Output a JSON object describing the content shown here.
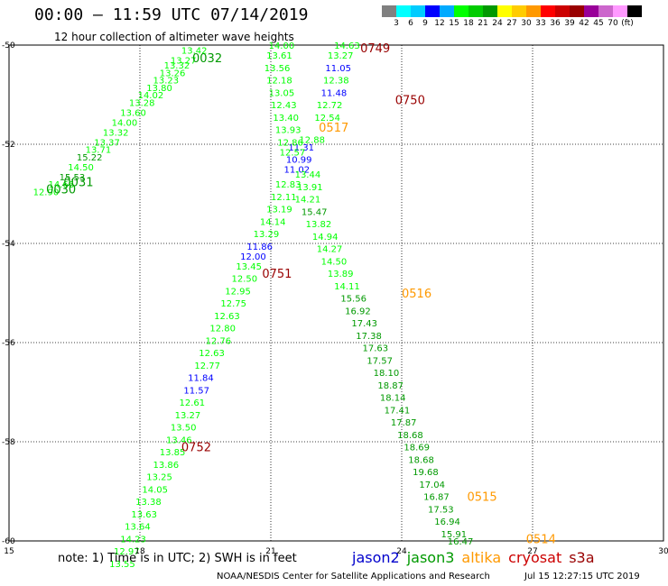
{
  "header": {
    "title": "00:00 – 11:59 UTC 07/14/2019",
    "subtitle": "12 hour collection of altimeter wave heights"
  },
  "legend": {
    "colors": [
      "#808080",
      "#00ffff",
      "#00ccff",
      "#0000ff",
      "#00aaff",
      "#00ff00",
      "#00cc00",
      "#009900",
      "#ffff00",
      "#ffcc00",
      "#ff9900",
      "#ff0000",
      "#cc0000",
      "#990000",
      "#990099",
      "#cc66cc",
      "#ff99ff",
      "#000000"
    ],
    "ticks": [
      "3",
      "6",
      "9",
      "12",
      "15",
      "18",
      "21",
      "24",
      "27",
      "30",
      "33",
      "36",
      "39",
      "42",
      "45",
      "70",
      "(ft)"
    ]
  },
  "chart_data": {
    "type": "scatter",
    "x_ticks": [
      "15",
      "18",
      "21",
      "24",
      "27",
      "30"
    ],
    "y_ticks": [
      "-50",
      "-52",
      "-54",
      "-56",
      "-58",
      "-60"
    ],
    "xlim": [
      15,
      30
    ],
    "ylim": [
      -60,
      -50
    ],
    "grid": true,
    "time_labels": [
      {
        "text": "0749",
        "lon": 23.05,
        "lat": -50.05,
        "color": "#990000"
      },
      {
        "text": "0750",
        "lon": 23.85,
        "lat": -51.1,
        "color": "#990000"
      },
      {
        "text": "0517",
        "lon": 22.1,
        "lat": -51.65,
        "color": "#ff9900"
      },
      {
        "text": "0032",
        "lon": 19.2,
        "lat": -50.25,
        "color": "#009900"
      },
      {
        "text": "0031",
        "lon": 16.25,
        "lat": -52.75,
        "color": "#009900"
      },
      {
        "text": "0030",
        "lon": 15.85,
        "lat": -52.9,
        "color": "#009900"
      },
      {
        "text": "0751",
        "lon": 20.8,
        "lat": -54.6,
        "color": "#990000"
      },
      {
        "text": "0516",
        "lon": 24.0,
        "lat": -55.0,
        "color": "#ff9900"
      },
      {
        "text": "0752",
        "lon": 18.95,
        "lat": -58.1,
        "color": "#990000"
      },
      {
        "text": "0515",
        "lon": 25.5,
        "lat": -59.1,
        "color": "#ff9900"
      },
      {
        "text": "0514",
        "lon": 26.85,
        "lat": -59.95,
        "color": "#ff9900"
      }
    ],
    "points": [
      {
        "v": "14.63",
        "lon": 22.45,
        "lat": -50.0,
        "c": "#00ff00"
      },
      {
        "v": "13.27",
        "lon": 22.3,
        "lat": -50.2,
        "c": "#00ff00"
      },
      {
        "v": "11.05",
        "lon": 22.25,
        "lat": -50.45,
        "c": "#0000ff"
      },
      {
        "v": "12.38",
        "lon": 22.2,
        "lat": -50.7,
        "c": "#00ff00"
      },
      {
        "v": "11.48",
        "lon": 22.15,
        "lat": -50.95,
        "c": "#0000ff"
      },
      {
        "v": "12.72",
        "lon": 22.05,
        "lat": -51.2,
        "c": "#00ff00"
      },
      {
        "v": "12.54",
        "lon": 22.0,
        "lat": -51.45,
        "c": "#00ff00"
      },
      {
        "v": "12.88",
        "lon": 21.65,
        "lat": -51.9,
        "c": "#00ff00"
      },
      {
        "v": "11.31",
        "lon": 21.4,
        "lat": -52.05,
        "c": "#0000ff"
      },
      {
        "v": "10.99",
        "lon": 21.35,
        "lat": -52.3,
        "c": "#0000ff"
      },
      {
        "v": "11.02",
        "lon": 21.3,
        "lat": -52.5,
        "c": "#0000ff"
      },
      {
        "v": "13.44",
        "lon": 21.55,
        "lat": -52.6,
        "c": "#00ff00"
      },
      {
        "v": "13.91",
        "lon": 21.6,
        "lat": -52.85,
        "c": "#00ff00"
      },
      {
        "v": "14.21",
        "lon": 21.55,
        "lat": -53.1,
        "c": "#00ff00"
      },
      {
        "v": "15.47",
        "lon": 21.7,
        "lat": -53.35,
        "c": "#009900"
      },
      {
        "v": "13.82",
        "lon": 21.8,
        "lat": -53.6,
        "c": "#00ff00"
      },
      {
        "v": "14.94",
        "lon": 21.95,
        "lat": -53.85,
        "c": "#00ff00"
      },
      {
        "v": "14.27",
        "lon": 22.05,
        "lat": -54.1,
        "c": "#00ff00"
      },
      {
        "v": "14.50",
        "lon": 22.15,
        "lat": -54.35,
        "c": "#00ff00"
      },
      {
        "v": "13.89",
        "lon": 22.3,
        "lat": -54.6,
        "c": "#00ff00"
      },
      {
        "v": "14.11",
        "lon": 22.45,
        "lat": -54.85,
        "c": "#00ff00"
      },
      {
        "v": "15.56",
        "lon": 22.6,
        "lat": -55.1,
        "c": "#009900"
      },
      {
        "v": "16.92",
        "lon": 22.7,
        "lat": -55.35,
        "c": "#009900"
      },
      {
        "v": "17.43",
        "lon": 22.85,
        "lat": -55.6,
        "c": "#009900"
      },
      {
        "v": "17.38",
        "lon": 22.95,
        "lat": -55.85,
        "c": "#009900"
      },
      {
        "v": "17.63",
        "lon": 23.1,
        "lat": -56.1,
        "c": "#009900"
      },
      {
        "v": "17.57",
        "lon": 23.2,
        "lat": -56.35,
        "c": "#009900"
      },
      {
        "v": "18.10",
        "lon": 23.35,
        "lat": -56.6,
        "c": "#009900"
      },
      {
        "v": "18.87",
        "lon": 23.45,
        "lat": -56.85,
        "c": "#009900"
      },
      {
        "v": "18.14",
        "lon": 23.5,
        "lat": -57.1,
        "c": "#009900"
      },
      {
        "v": "17.41",
        "lon": 23.6,
        "lat": -57.35,
        "c": "#009900"
      },
      {
        "v": "17.87",
        "lon": 23.75,
        "lat": -57.6,
        "c": "#009900"
      },
      {
        "v": "18.68",
        "lon": 23.9,
        "lat": -57.85,
        "c": "#009900"
      },
      {
        "v": "18.69",
        "lon": 24.05,
        "lat": -58.1,
        "c": "#009900"
      },
      {
        "v": "18.68",
        "lon": 24.15,
        "lat": -58.35,
        "c": "#009900"
      },
      {
        "v": "19.68",
        "lon": 24.25,
        "lat": -58.6,
        "c": "#009900"
      },
      {
        "v": "17.04",
        "lon": 24.4,
        "lat": -58.85,
        "c": "#009900"
      },
      {
        "v": "16.87",
        "lon": 24.5,
        "lat": -59.1,
        "c": "#009900"
      },
      {
        "v": "17.53",
        "lon": 24.6,
        "lat": -59.35,
        "c": "#009900"
      },
      {
        "v": "16.94",
        "lon": 24.75,
        "lat": -59.6,
        "c": "#009900"
      },
      {
        "v": "15.91",
        "lon": 24.9,
        "lat": -59.85,
        "c": "#009900"
      },
      {
        "v": "16.47",
        "lon": 25.05,
        "lat": -60.0,
        "c": "#009900"
      },
      {
        "v": "14.00",
        "lon": 20.95,
        "lat": -50.0,
        "c": "#00ff00"
      },
      {
        "v": "13.61",
        "lon": 20.9,
        "lat": -50.2,
        "c": "#00ff00"
      },
      {
        "v": "13.56",
        "lon": 20.85,
        "lat": -50.45,
        "c": "#00ff00"
      },
      {
        "v": "12.18",
        "lon": 20.9,
        "lat": -50.7,
        "c": "#00ff00"
      },
      {
        "v": "13.05",
        "lon": 20.95,
        "lat": -50.95,
        "c": "#00ff00"
      },
      {
        "v": "12.43",
        "lon": 21.0,
        "lat": -51.2,
        "c": "#00ff00"
      },
      {
        "v": "13.40",
        "lon": 21.05,
        "lat": -51.45,
        "c": "#00ff00"
      },
      {
        "v": "13.93",
        "lon": 21.1,
        "lat": -51.7,
        "c": "#00ff00"
      },
      {
        "v": "12.86",
        "lon": 21.15,
        "lat": -51.95,
        "c": "#00ff00"
      },
      {
        "v": "12.57",
        "lon": 21.2,
        "lat": -52.15,
        "c": "#00ff00"
      },
      {
        "v": "12.83",
        "lon": 21.1,
        "lat": -52.8,
        "c": "#00ff00"
      },
      {
        "v": "12.11",
        "lon": 21.0,
        "lat": -53.05,
        "c": "#00ff00"
      },
      {
        "v": "13.19",
        "lon": 20.9,
        "lat": -53.3,
        "c": "#00ff00"
      },
      {
        "v": "14.14",
        "lon": 20.75,
        "lat": -53.55,
        "c": "#00ff00"
      },
      {
        "v": "13.29",
        "lon": 20.6,
        "lat": -53.8,
        "c": "#00ff00"
      },
      {
        "v": "11.86",
        "lon": 20.45,
        "lat": -54.05,
        "c": "#0000ff"
      },
      {
        "v": "12.00",
        "lon": 20.3,
        "lat": -54.25,
        "c": "#0000ff"
      },
      {
        "v": "13.45",
        "lon": 20.2,
        "lat": -54.45,
        "c": "#00ff00"
      },
      {
        "v": "12.50",
        "lon": 20.1,
        "lat": -54.7,
        "c": "#00ff00"
      },
      {
        "v": "12.95",
        "lon": 19.95,
        "lat": -54.95,
        "c": "#00ff00"
      },
      {
        "v": "12.75",
        "lon": 19.85,
        "lat": -55.2,
        "c": "#00ff00"
      },
      {
        "v": "12.63",
        "lon": 19.7,
        "lat": -55.45,
        "c": "#00ff00"
      },
      {
        "v": "12.80",
        "lon": 19.6,
        "lat": -55.7,
        "c": "#00ff00"
      },
      {
        "v": "12.76",
        "lon": 19.5,
        "lat": -55.95,
        "c": "#00ff00"
      },
      {
        "v": "12.63",
        "lon": 19.35,
        "lat": -56.2,
        "c": "#00ff00"
      },
      {
        "v": "12.77",
        "lon": 19.25,
        "lat": -56.45,
        "c": "#00ff00"
      },
      {
        "v": "11.84",
        "lon": 19.1,
        "lat": -56.7,
        "c": "#0000ff"
      },
      {
        "v": "11.57",
        "lon": 19.0,
        "lat": -56.95,
        "c": "#0000ff"
      },
      {
        "v": "12.61",
        "lon": 18.9,
        "lat": -57.2,
        "c": "#00ff00"
      },
      {
        "v": "13.27",
        "lon": 18.8,
        "lat": -57.45,
        "c": "#00ff00"
      },
      {
        "v": "13.50",
        "lon": 18.7,
        "lat": -57.7,
        "c": "#00ff00"
      },
      {
        "v": "13.46",
        "lon": 18.6,
        "lat": -57.95,
        "c": "#00ff00"
      },
      {
        "v": "13.85",
        "lon": 18.45,
        "lat": -58.2,
        "c": "#00ff00"
      },
      {
        "v": "13.86",
        "lon": 18.3,
        "lat": -58.45,
        "c": "#00ff00"
      },
      {
        "v": "13.25",
        "lon": 18.15,
        "lat": -58.7,
        "c": "#00ff00"
      },
      {
        "v": "14.05",
        "lon": 18.05,
        "lat": -58.95,
        "c": "#00ff00"
      },
      {
        "v": "13.38",
        "lon": 17.9,
        "lat": -59.2,
        "c": "#00ff00"
      },
      {
        "v": "13.63",
        "lon": 17.8,
        "lat": -59.45,
        "c": "#00ff00"
      },
      {
        "v": "13.64",
        "lon": 17.65,
        "lat": -59.7,
        "c": "#00ff00"
      },
      {
        "v": "14.23",
        "lon": 17.55,
        "lat": -59.95,
        "c": "#00ff00"
      },
      {
        "v": "12.97",
        "lon": 17.4,
        "lat": -60.2,
        "c": "#00ff00"
      },
      {
        "v": "13.55",
        "lon": 17.3,
        "lat": -60.45,
        "c": "#00ff00"
      },
      {
        "v": "13.42",
        "lon": 18.95,
        "lat": -50.1,
        "c": "#00ff00"
      },
      {
        "v": "13.27",
        "lon": 18.7,
        "lat": -50.3,
        "c": "#00ff00"
      },
      {
        "v": "13.32",
        "lon": 18.55,
        "lat": -50.4,
        "c": "#00ff00"
      },
      {
        "v": "13.26",
        "lon": 18.45,
        "lat": -50.55,
        "c": "#00ff00"
      },
      {
        "v": "13.23",
        "lon": 18.3,
        "lat": -50.7,
        "c": "#00ff00"
      },
      {
        "v": "13.80",
        "lon": 18.15,
        "lat": -50.85,
        "c": "#00ff00"
      },
      {
        "v": "14.02",
        "lon": 17.95,
        "lat": -51.0,
        "c": "#00ff00"
      },
      {
        "v": "13.28",
        "lon": 17.75,
        "lat": -51.15,
        "c": "#00ff00"
      },
      {
        "v": "13.60",
        "lon": 17.55,
        "lat": -51.35,
        "c": "#00ff00"
      },
      {
        "v": "14.00",
        "lon": 17.35,
        "lat": -51.55,
        "c": "#00ff00"
      },
      {
        "v": "13.32",
        "lon": 17.15,
        "lat": -51.75,
        "c": "#00ff00"
      },
      {
        "v": "13.37",
        "lon": 16.95,
        "lat": -51.95,
        "c": "#00ff00"
      },
      {
        "v": "13.71",
        "lon": 16.75,
        "lat": -52.1,
        "c": "#00ff00"
      },
      {
        "v": "15.22",
        "lon": 16.55,
        "lat": -52.25,
        "c": "#009900"
      },
      {
        "v": "14.50",
        "lon": 16.35,
        "lat": -52.45,
        "c": "#00ff00"
      },
      {
        "v": "15.53",
        "lon": 16.15,
        "lat": -52.65,
        "c": "#009900"
      },
      {
        "v": "14.66",
        "lon": 15.9,
        "lat": -52.8,
        "c": "#00ff00"
      },
      {
        "v": "12.90",
        "lon": 15.55,
        "lat": -52.95,
        "c": "#00ff00"
      }
    ]
  },
  "footer": {
    "note": "note: 1) Time is in UTC; 2) SWH is in feet",
    "satellites": [
      {
        "name": "jason2",
        "color": "#0000cc"
      },
      {
        "name": "jason3",
        "color": "#009900"
      },
      {
        "name": "altika",
        "color": "#ff9900"
      },
      {
        "name": "cryosat",
        "color": "#cc0000"
      },
      {
        "name": "s3a",
        "color": "#990000"
      }
    ],
    "credit": "NOAA/NESDIS Center for Satellite Applications and Research",
    "generated": "Jul 15 12:27:15 UTC 2019"
  }
}
